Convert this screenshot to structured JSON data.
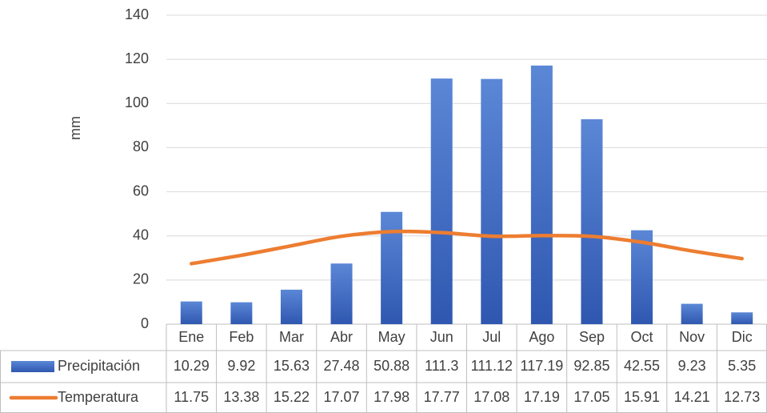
{
  "chart_data": {
    "type": "bar",
    "y_label": "mm",
    "categories": [
      "Ene",
      "Feb",
      "Mar",
      "Abr",
      "May",
      "Jun",
      "Jul",
      "Ago",
      "Sep",
      "Oct",
      "Nov",
      "Dic"
    ],
    "series": [
      {
        "name": "Precipitación",
        "type": "bar",
        "color": "#4472c4",
        "values": [
          10.29,
          9.92,
          15.63,
          27.48,
          50.88,
          111.3,
          111.12,
          117.19,
          92.85,
          42.55,
          9.23,
          5.35
        ]
      },
      {
        "name": "Temperatura",
        "type": "line",
        "axis": "y2",
        "color": "#ed7d31",
        "values": [
          11.75,
          13.38,
          15.22,
          17.07,
          17.98,
          17.77,
          17.08,
          17.19,
          17.05,
          15.91,
          14.21,
          12.73
        ]
      }
    ],
    "ylim": [
      0,
      140
    ],
    "yticks": [
      0,
      20,
      40,
      60,
      80,
      100,
      120,
      140
    ],
    "y2lim": [
      0,
      60
    ],
    "grid": true
  }
}
